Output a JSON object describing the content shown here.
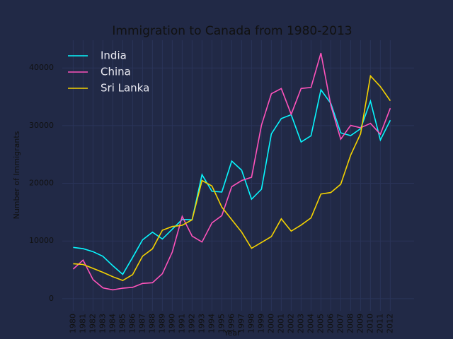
{
  "chart_data": {
    "type": "line",
    "title": "Immigration to Canada from 1980-2013",
    "xlabel": "Year",
    "ylabel": "Number of Immigrants",
    "x": [
      1980,
      1981,
      1982,
      1983,
      1984,
      1985,
      1986,
      1987,
      1988,
      1989,
      1990,
      1991,
      1992,
      1993,
      1994,
      1995,
      1996,
      1997,
      1998,
      1999,
      2000,
      2001,
      2002,
      2003,
      2004,
      2005,
      2006,
      2007,
      2008,
      2009,
      2010,
      2011,
      2012
    ],
    "series": [
      {
        "name": "India",
        "color": "#08F7FE",
        "values": [
          8880,
          8670,
          8147,
          7338,
          5704,
          4211,
          7150,
          10189,
          11522,
          10343,
          12041,
          13734,
          13673,
          21496,
          18620,
          18489,
          23859,
          22268,
          17241,
          18974,
          28572,
          31223,
          31889,
          27155,
          28235,
          36210,
          33848,
          28742,
          28261,
          29456,
          34235,
          27509,
          30933
        ]
      },
      {
        "name": "China",
        "color": "#FE53BB",
        "values": [
          5123,
          6682,
          3308,
          1863,
          1527,
          1816,
          1960,
          2643,
          2758,
          4323,
          8076,
          14255,
          10846,
          9817,
          13128,
          14398,
          19415,
          20475,
          21049,
          30069,
          35529,
          36434,
          31961,
          36439,
          36619,
          42584,
          33518,
          27642,
          30037,
          29622,
          30391,
          28502,
          33024
        ]
      },
      {
        "name": "Sri Lanka",
        "color": "#F5D300",
        "values": [
          6051,
          5921,
          5249,
          4562,
          3801,
          3150,
          4166,
          7360,
          8639,
          11865,
          12509,
          12718,
          13670,
          20479,
          19532,
          15864,
          13692,
          11549,
          8735,
          9734,
          10763,
          13836,
          11707,
          12758,
          14004,
          18139,
          18400,
          19837,
          24887,
          28573,
          38617,
          36765,
          34315
        ]
      }
    ],
    "xlim": [
      1978.9,
      2014.4
    ],
    "ylim": [
      -2100,
      44800
    ],
    "xticks": [
      1980,
      1981,
      1982,
      1983,
      1984,
      1985,
      1986,
      1987,
      1988,
      1989,
      1990,
      1991,
      1992,
      1993,
      1994,
      1995,
      1996,
      1997,
      1998,
      1999,
      2000,
      2001,
      2002,
      2003,
      2004,
      2005,
      2006,
      2007,
      2008,
      2009,
      2010,
      2011,
      2012
    ],
    "yticks": [
      0,
      10000,
      20000,
      30000,
      40000
    ],
    "grid": true,
    "legend": "upper left",
    "background": "#212946",
    "grid_color": "#2A3459"
  }
}
